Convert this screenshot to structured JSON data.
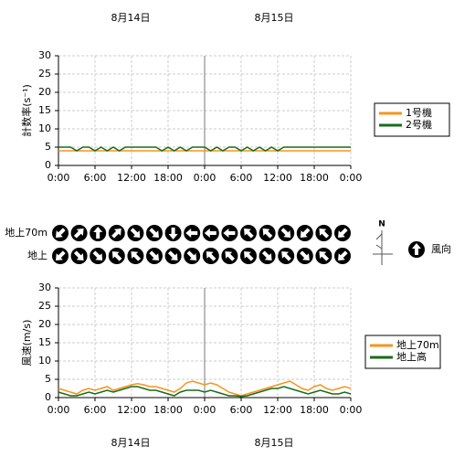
{
  "dates": [
    "8月14日",
    "8月15日"
  ],
  "chart_data": [
    {
      "type": "line",
      "y_label": "計数率(s⁻¹)",
      "grid": true,
      "legend": "right",
      "x": [
        0,
        1,
        2,
        3,
        4,
        5,
        6,
        7,
        8,
        9,
        10,
        11,
        12,
        13,
        14,
        15,
        16,
        17,
        18,
        19,
        20,
        21,
        22,
        23,
        24,
        25,
        26,
        27,
        28,
        29,
        30,
        31,
        32,
        33,
        34,
        35,
        36,
        37,
        38,
        39,
        40,
        41,
        42,
        43,
        44,
        45,
        46,
        47,
        48
      ],
      "xlim": [
        0,
        48
      ],
      "xticks": [
        {
          "value": 0,
          "label": "0:00"
        },
        {
          "value": 6,
          "label": "6:00"
        },
        {
          "value": 12,
          "label": "12:00"
        },
        {
          "value": 18,
          "label": "18:00"
        },
        {
          "value": 24,
          "label": "0:00"
        },
        {
          "value": 30,
          "label": "6:00"
        },
        {
          "value": 36,
          "label": "12:00"
        },
        {
          "value": 42,
          "label": "18:00"
        },
        {
          "value": 48,
          "label": "0:00"
        }
      ],
      "ylim": [
        0,
        30
      ],
      "yticks": [
        0,
        5,
        10,
        15,
        20,
        25,
        30
      ],
      "series": [
        {
          "name": "1号機",
          "color": "#f7941d",
          "values": [
            4,
            4,
            4,
            4,
            4,
            4,
            4,
            4,
            4,
            4,
            4,
            4,
            4,
            4,
            4,
            4,
            4,
            4,
            4,
            4,
            4,
            4,
            4,
            4,
            4,
            4,
            4,
            4,
            4,
            4,
            4,
            4,
            4,
            4,
            4,
            4,
            4,
            4,
            4,
            4,
            4,
            4,
            4,
            4,
            4,
            4,
            4,
            4,
            4
          ]
        },
        {
          "name": "2号機",
          "color": "#1a6b1a",
          "values": [
            5,
            5,
            5,
            4,
            5,
            5,
            4,
            5,
            4,
            5,
            4,
            5,
            5,
            5,
            5,
            5,
            5,
            4,
            5,
            4,
            5,
            4,
            5,
            5,
            5,
            4,
            5,
            4,
            5,
            5,
            4,
            5,
            4,
            5,
            4,
            5,
            4,
            5,
            5,
            5,
            5,
            5,
            5,
            5,
            5,
            5,
            5,
            5,
            5
          ]
        }
      ]
    },
    {
      "type": "line",
      "y_label": "風速(m/s)",
      "grid": true,
      "legend": "right",
      "x": [
        0,
        1,
        2,
        3,
        4,
        5,
        6,
        7,
        8,
        9,
        10,
        11,
        12,
        13,
        14,
        15,
        16,
        17,
        18,
        19,
        20,
        21,
        22,
        23,
        24,
        25,
        26,
        27,
        28,
        29,
        30,
        31,
        32,
        33,
        34,
        35,
        36,
        37,
        38,
        39,
        40,
        41,
        42,
        43,
        44,
        45,
        46,
        47,
        48
      ],
      "xlim": [
        0,
        48
      ],
      "xticks": [
        {
          "value": 0,
          "label": "0:00"
        },
        {
          "value": 6,
          "label": "6:00"
        },
        {
          "value": 12,
          "label": "12:00"
        },
        {
          "value": 18,
          "label": "18:00"
        },
        {
          "value": 24,
          "label": "0:00"
        },
        {
          "value": 30,
          "label": "6:00"
        },
        {
          "value": 36,
          "label": "12:00"
        },
        {
          "value": 42,
          "label": "18:00"
        },
        {
          "value": 48,
          "label": "0:00"
        }
      ],
      "ylim": [
        0,
        30
      ],
      "yticks": [
        0,
        5,
        10,
        15,
        20,
        25,
        30
      ],
      "series": [
        {
          "name": "地上70m",
          "color": "#f7941d",
          "values": [
            2.5,
            2,
            1.5,
            1,
            2,
            2.5,
            2,
            2.5,
            3,
            2,
            2.5,
            3,
            3.5,
            3.8,
            3.5,
            3,
            3,
            2.5,
            2,
            1.5,
            2.5,
            4,
            4.5,
            4,
            3.5,
            4,
            3.5,
            2.5,
            1.5,
            1,
            0.5,
            1,
            1.5,
            2,
            2.5,
            3,
            3.5,
            4,
            4.5,
            3.5,
            2.5,
            2,
            3,
            3.5,
            2.5,
            2,
            2.5,
            3,
            2.5
          ]
        },
        {
          "name": "地上高",
          "color": "#1a6b1a",
          "values": [
            1.5,
            1,
            0.5,
            0.5,
            1,
            1.5,
            1,
            1.5,
            2,
            1.5,
            2,
            2.5,
            3,
            3,
            2.5,
            2,
            2,
            1.5,
            1,
            0.5,
            1.5,
            2,
            2,
            2,
            1.5,
            2,
            1.5,
            1,
            0.5,
            0.5,
            0.3,
            0.5,
            1,
            1.5,
            2,
            2.5,
            2.5,
            3,
            2.5,
            2,
            1.5,
            1,
            1.5,
            2,
            1.5,
            1,
            1,
            1.5,
            1
          ]
        }
      ]
    },
    {
      "type": "wind_arrows",
      "legend_label": "風向",
      "north_label": "N",
      "series": [
        {
          "name": "地上70m",
          "values": [
            225,
            45,
            0,
            45,
            135,
            135,
            180,
            270,
            270,
            270,
            315,
            315,
            135,
            225,
            315,
            225
          ]
        },
        {
          "name": "地上",
          "values": [
            225,
            135,
            135,
            315,
            315,
            135,
            135,
            135,
            315,
            315,
            315,
            135,
            315,
            135,
            315,
            225
          ]
        }
      ]
    }
  ]
}
